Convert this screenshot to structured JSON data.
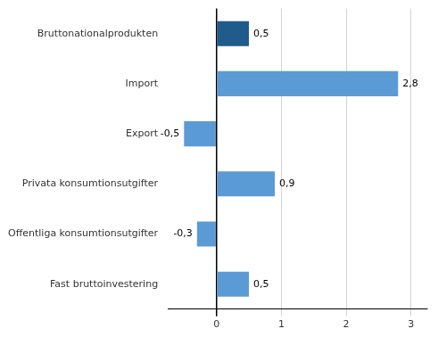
{
  "chart_data": {
    "type": "bar",
    "orientation": "horizontal",
    "categories": [
      "Fast bruttoinvestering",
      "Offentliga konsumtionsutgifter",
      "Privata konsumtionsutgifter",
      "Export",
      "Import",
      "Bruttonationalprodukten"
    ],
    "values": [
      0.5,
      -0.3,
      0.9,
      -0.5,
      2.8,
      0.5
    ],
    "value_labels": [
      "0,5",
      "-0,3",
      "0,9",
      "-0,5",
      "2,8",
      "0,5"
    ],
    "colors": [
      "#5b9bd5",
      "#5b9bd5",
      "#5b9bd5",
      "#5b9bd5",
      "#5b9bd5",
      "#1f5c8b"
    ],
    "xlim": [
      -0.75,
      3.25
    ],
    "xticks": [
      0,
      1,
      2,
      3
    ],
    "grid": true,
    "data_labels": true
  }
}
